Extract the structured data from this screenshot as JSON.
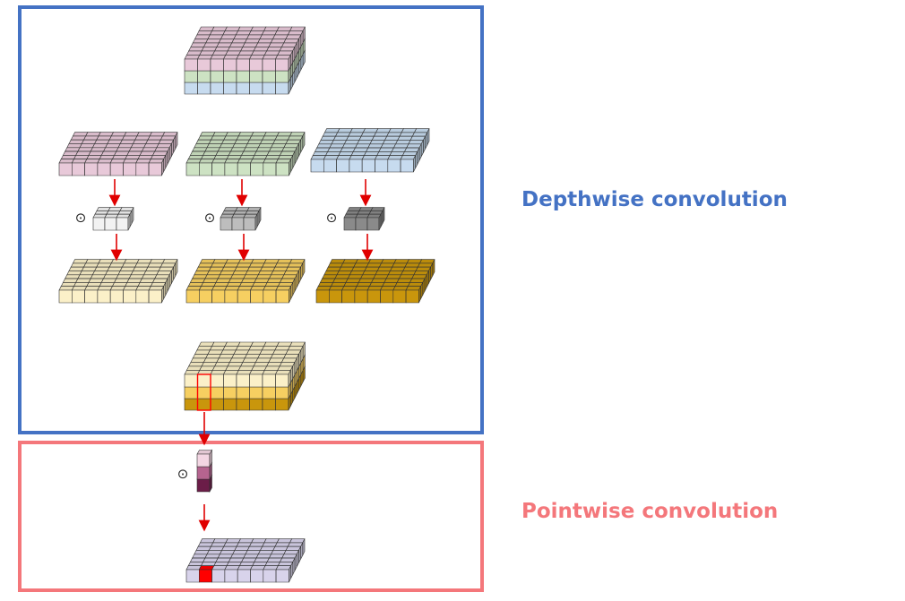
{
  "labels": {
    "depthwise": "Depthwise convolution",
    "pointwise": "Pointwise convolution"
  },
  "colors": {
    "depthwise_accent": "#4472C4",
    "pointwise_accent": "#F4777B",
    "arrow": "#E00000",
    "input_channel_1": "#E8C9D9",
    "input_channel_2": "#CDE2C3",
    "input_channel_3": "#C7DBEF",
    "kernel_1": "#F2F2F2",
    "kernel_2": "#BDBDBD",
    "kernel_3": "#8A8A8A",
    "output_channel_1": "#FBF0C8",
    "output_channel_2": "#F6CF61",
    "output_channel_3": "#C9960C",
    "pointwise_kernel_1": "#F3D6E3",
    "pointwise_kernel_2": "#B5648F",
    "pointwise_kernel_3": "#6B1D48",
    "pointwise_output": "#D8D3EB",
    "highlight": "#FF0000"
  },
  "symbols": {
    "convolution_operator": "⊙"
  }
}
